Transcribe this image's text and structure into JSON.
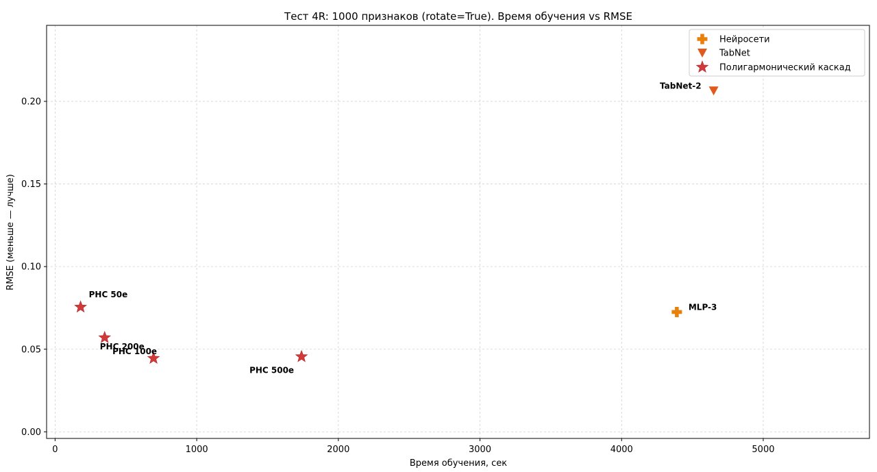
{
  "chart_data": {
    "type": "scatter",
    "title": "Тест 4R: 1000 признаков (rotate=True). Время обучения vs RMSE",
    "xlabel": "Время обучения, сек",
    "ylabel": "RMSE (меньше — лучше)",
    "xlim": [
      -60,
      5750
    ],
    "ylim": [
      -0.004,
      0.246
    ],
    "xticks": [
      0,
      1000,
      2000,
      3000,
      4000,
      5000
    ],
    "yticks": [
      0.0,
      0.05,
      0.1,
      0.15,
      0.2
    ],
    "ytick_labels": [
      "0.00",
      "0.05",
      "0.10",
      "0.15",
      "0.20"
    ],
    "grid": true,
    "legend_position": "top-right",
    "series": [
      {
        "name": "Нейросети",
        "marker": "plus",
        "color": "#e8800c",
        "points": [
          {
            "label": "MLP-3",
            "x": 4390,
            "y": 0.0725
          }
        ]
      },
      {
        "name": "TabNet",
        "marker": "triangle-down",
        "color": "#e05a1e",
        "points": [
          {
            "label": "TabNet-2",
            "x": 4650,
            "y": 0.2065
          }
        ]
      },
      {
        "name": "Полигармонический каскад",
        "marker": "star",
        "color": "#d03a3a",
        "points": [
          {
            "label": "PHC 50e",
            "x": 180,
            "y": 0.0755
          },
          {
            "label": "PHC 200e",
            "x": 350,
            "y": 0.057
          },
          {
            "label": "PHC 100e",
            "x": 695,
            "y": 0.0445
          },
          {
            "label": "PHC 500e",
            "x": 1740,
            "y": 0.0455
          }
        ]
      }
    ]
  }
}
